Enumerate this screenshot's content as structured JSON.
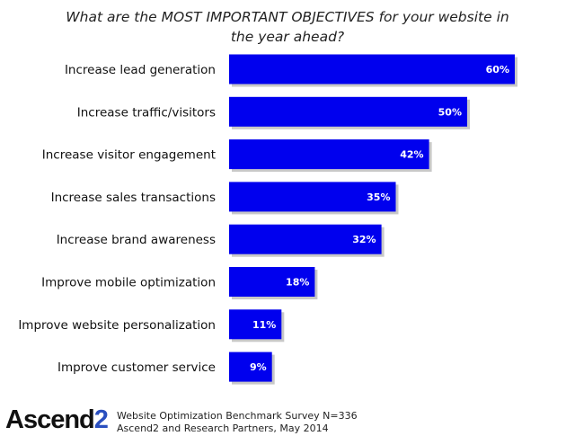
{
  "chart_data": {
    "type": "bar",
    "orientation": "horizontal",
    "title": "What are the MOST IMPORTANT OBJECTIVES for your website in the year ahead?",
    "categories": [
      "Increase lead generation",
      "Increase traffic/visitors",
      "Increase visitor engagement",
      "Increase sales transactions",
      "Increase brand awareness",
      "Improve mobile optimization",
      "Improve website personalization",
      "Improve customer service"
    ],
    "values": [
      60,
      50,
      42,
      35,
      32,
      18,
      11,
      9
    ],
    "value_labels": [
      "60%",
      "50%",
      "42%",
      "35%",
      "32%",
      "18%",
      "11%",
      "9%"
    ],
    "unit": "%",
    "xlim": [
      0,
      60
    ],
    "grid": false,
    "legend": "none",
    "bar_color": "#0000ee"
  },
  "footer": {
    "logo_text": "Ascend",
    "logo_number": "2",
    "note_line1": "Website Optimization Benchmark Survey N=336",
    "note_line2": "Ascend2 and Research Partners, May 2014"
  }
}
